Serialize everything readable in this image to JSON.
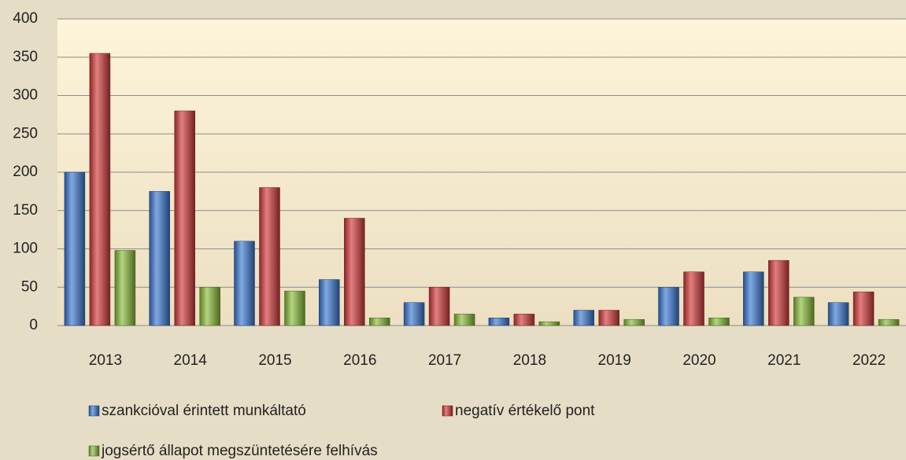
{
  "chart_data": {
    "type": "bar",
    "categories": [
      "2013",
      "2014",
      "2015",
      "2016",
      "2017",
      "2018",
      "2019",
      "2020",
      "2021",
      "2022"
    ],
    "series": [
      {
        "name": "szankcióval érintett munkáltató",
        "color": "#3b7ad6",
        "values": [
          200,
          175,
          110,
          60,
          30,
          10,
          20,
          50,
          70,
          30
        ]
      },
      {
        "name": "negatív értékelő pont",
        "color": "#d63a3a",
        "values": [
          355,
          280,
          180,
          140,
          50,
          15,
          20,
          70,
          85,
          44
        ]
      },
      {
        "name": "jogsértő állapot megszüntetésére felhívás",
        "color": "#8cbf3a",
        "values": [
          98,
          50,
          45,
          10,
          15,
          5,
          8,
          10,
          37,
          8
        ]
      }
    ],
    "ylim": [
      0,
      400
    ],
    "yticks": [
      0,
      50,
      100,
      150,
      200,
      250,
      300,
      350,
      400
    ],
    "grid": true
  }
}
